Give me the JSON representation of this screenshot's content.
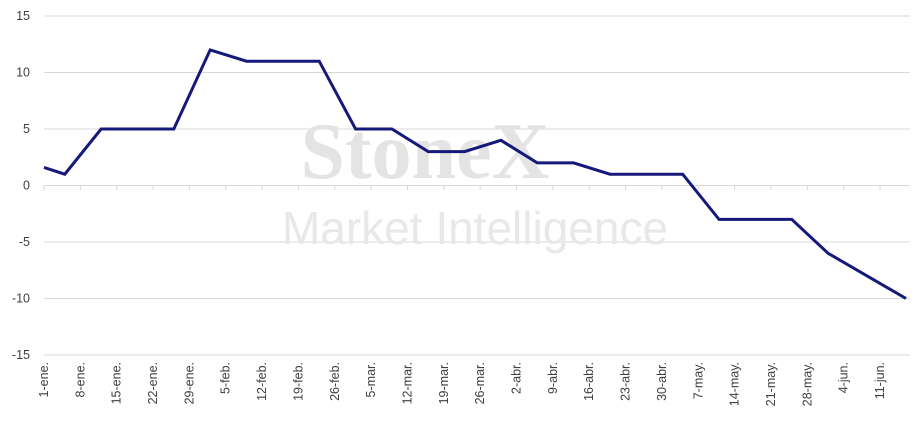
{
  "chart_data": {
    "type": "line",
    "title": "",
    "xlabel": "",
    "ylabel": "",
    "ylim": [
      -15,
      15
    ],
    "yticks": [
      15,
      10,
      5,
      0,
      -5,
      -10,
      -15
    ],
    "grid": true,
    "x_unit": "days since 1-ene.",
    "xlim": [
      0,
      166
    ],
    "xtick_labels": [
      "1-ene.",
      "8-ene.",
      "15-ene.",
      "22-ene.",
      "29-ene.",
      "5-feb.",
      "12-feb.",
      "19-feb.",
      "26-feb.",
      "5-mar.",
      "12-mar.",
      "19-mar.",
      "26-mar.",
      "2-abr.",
      "9-abr.",
      "16-abr.",
      "23-abr.",
      "30-abr.",
      "7-may.",
      "14-may.",
      "21-may.",
      "28-may.",
      "4-jun.",
      "11-jun."
    ],
    "series": [
      {
        "name": "series",
        "color": "#14197a",
        "x": [
          0,
          4,
          11,
          25,
          32,
          39,
          53,
          60,
          67,
          74,
          81,
          88,
          95,
          102,
          109,
          123,
          130,
          144,
          151,
          166
        ],
        "y": [
          1.6,
          1,
          5,
          5,
          12,
          11,
          11,
          5,
          5,
          3,
          3,
          4,
          2,
          2,
          1,
          1,
          -3,
          -3,
          -6,
          -10
        ]
      }
    ]
  },
  "watermark": {
    "brand": "StoneX",
    "sub": "Market Intelligence"
  }
}
